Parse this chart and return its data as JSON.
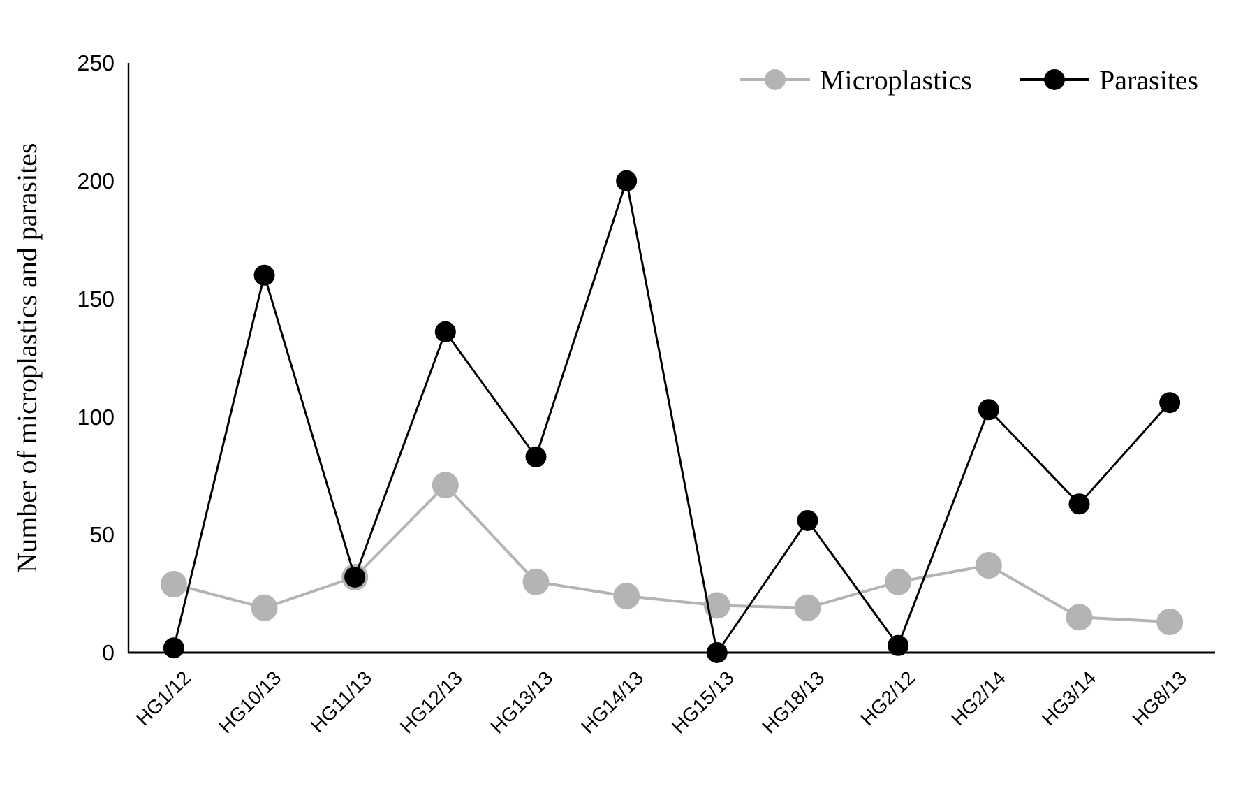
{
  "chart_data": {
    "type": "line",
    "ylabel": "Number of microplastics and parasites",
    "categories": [
      "HG1/12",
      "HG10/13",
      "HG11/13",
      "HG12/13",
      "HG13/13",
      "HG14/13",
      "HG15/13",
      "HG18/13",
      "HG2/12",
      "HG2/14",
      "HG3/14",
      "HG8/13"
    ],
    "series": [
      {
        "name": "Microplastics",
        "color": "#b4b4b4",
        "values": [
          29,
          19,
          32,
          71,
          30,
          24,
          20,
          19,
          30,
          37,
          15,
          13
        ]
      },
      {
        "name": "Parasites",
        "color": "#000000",
        "values": [
          2,
          160,
          32,
          136,
          83,
          200,
          0,
          56,
          3,
          103,
          63,
          106
        ]
      }
    ],
    "ylim": [
      0,
      250
    ],
    "yticks": [
      0,
      50,
      100,
      150,
      200,
      250
    ],
    "grid": false,
    "legend": "top right",
    "marker": "circle",
    "line_style": "solid"
  }
}
